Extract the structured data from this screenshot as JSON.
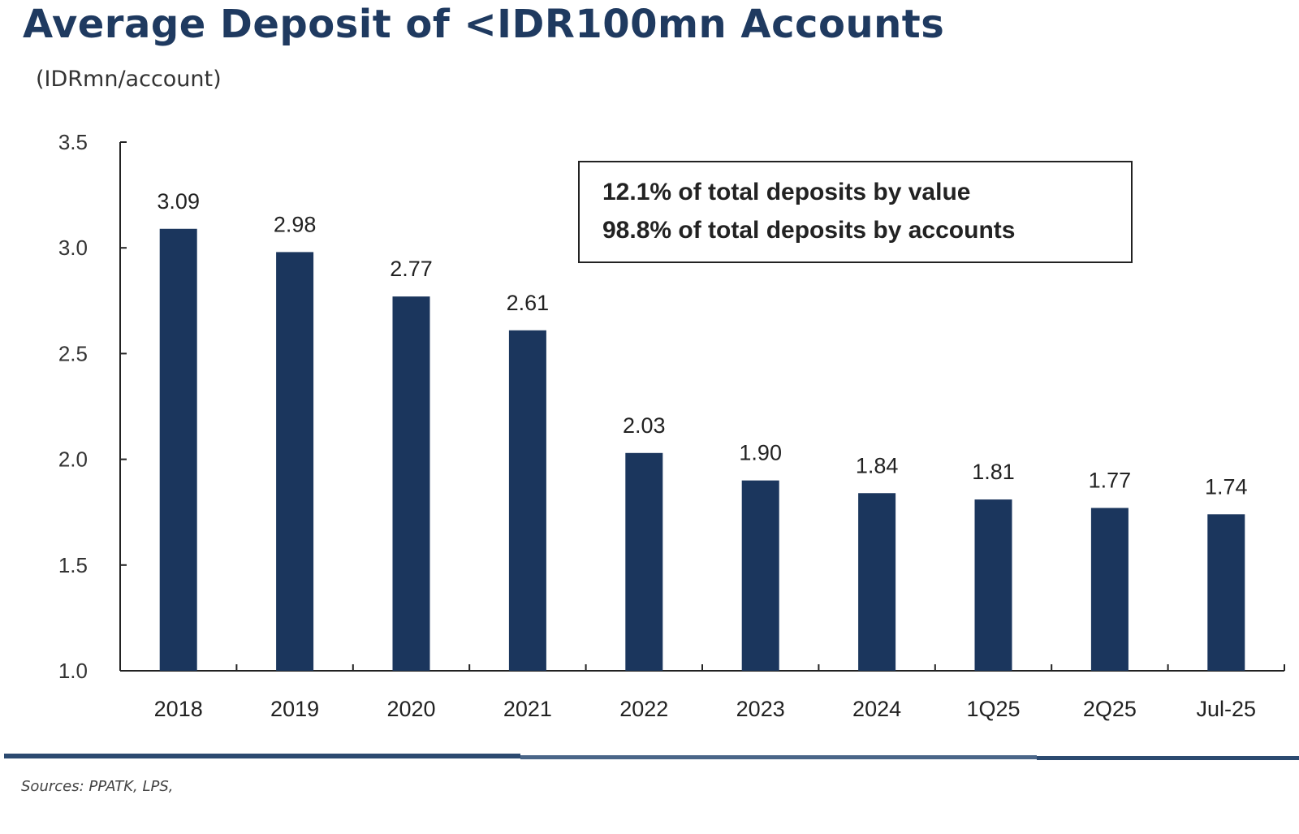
{
  "title": "Average Deposit of <IDR100mn Accounts",
  "unit": "(IDRmn/account)",
  "annotation": [
    "12.1% of total deposits by value",
    "98.8% of total deposits by accounts"
  ],
  "sources": "Sources: PPATK, LPS,",
  "colors": {
    "bar": "#1b365d",
    "title": "#1f3a60",
    "divider": "#2c4a70"
  },
  "chart_data": {
    "type": "bar",
    "title": "Average Deposit of <IDR100mn Accounts",
    "ylabel": "(IDRmn/account)",
    "xlabel": "",
    "categories": [
      "2018",
      "2019",
      "2020",
      "2021",
      "2022",
      "2023",
      "2024",
      "1Q25",
      "2Q25",
      "Jul-25"
    ],
    "values": [
      3.09,
      2.98,
      2.77,
      2.61,
      2.03,
      1.9,
      1.84,
      1.81,
      1.77,
      1.74
    ],
    "value_labels": [
      "3.09",
      "2.98",
      "2.77",
      "2.61",
      "2.03",
      "1.90",
      "1.84",
      "1.81",
      "1.77",
      "1.74"
    ],
    "ylim": [
      1.0,
      3.5
    ],
    "yticks": [
      "1.0",
      "1.5",
      "2.0",
      "2.5",
      "3.0",
      "3.5"
    ],
    "grid": false,
    "legend": "none"
  }
}
